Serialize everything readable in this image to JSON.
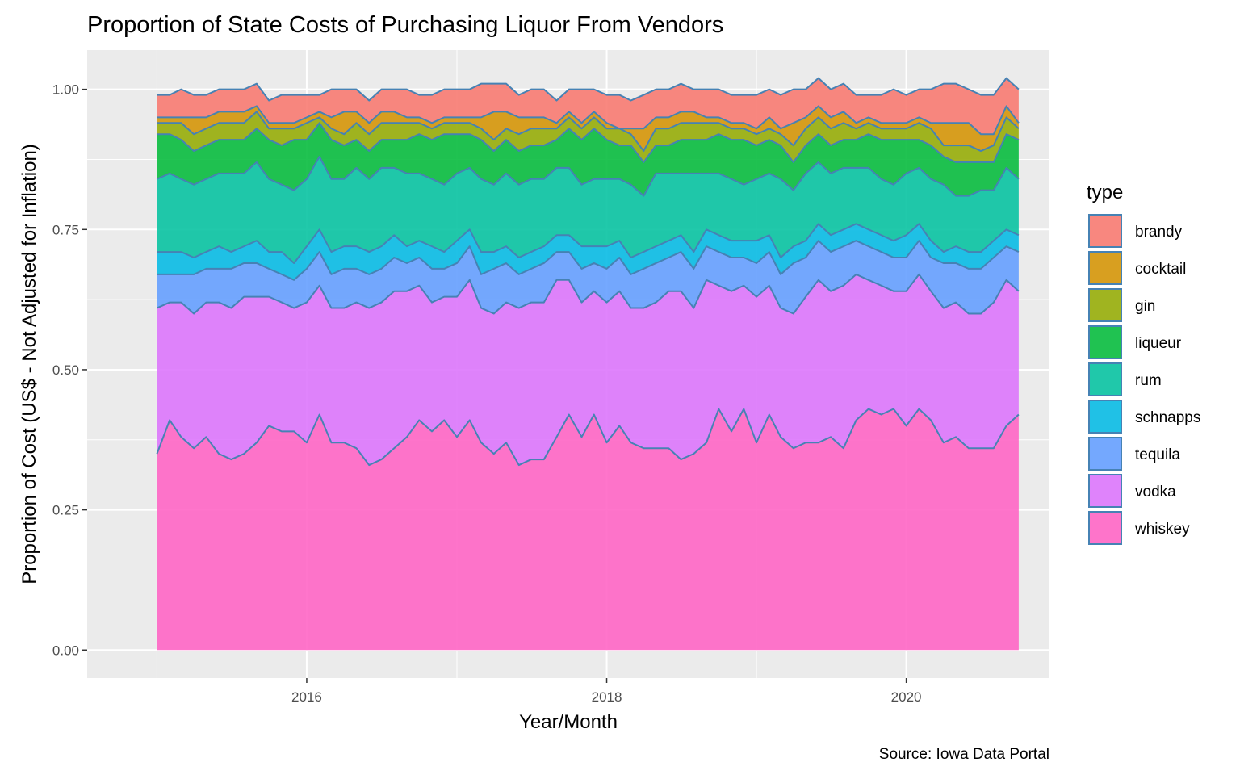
{
  "chart_data": {
    "type": "area",
    "title": "Proportion of State Costs of Purchasing Liquor From Vendors",
    "xlabel": "Year/Month",
    "ylabel": "Proportion of Cost (US$ - Not Adjusted for Inflation)",
    "caption": "Source: Iowa Data Portal",
    "legend_title": "type",
    "legend_position": "right",
    "grid": true,
    "stacked": true,
    "xlim": [
      "2014-07-15",
      "2020-12-15"
    ],
    "ylim": [
      -0.05,
      1.07
    ],
    "x_ticks": [
      "2016-01",
      "2018-01",
      "2020-01"
    ],
    "x_tick_labels": [
      "2016",
      "2018",
      "2020"
    ],
    "y_ticks": [
      0,
      0.25,
      0.5,
      0.75,
      1.0
    ],
    "y_tick_labels": [
      "0.00",
      "0.25",
      "0.50",
      "0.75",
      "1.00"
    ],
    "colors": {
      "brandy": "#F8766D",
      "cocktail": "#D39200",
      "gin": "#93AA00",
      "liqueur": "#00BA38",
      "rum": "#00C19F",
      "schnapps": "#00B9E3",
      "tequila": "#619CFF",
      "vodka": "#DB72FB",
      "whiskey": "#FF61C3"
    },
    "outline_color": "#4682B4",
    "x": [
      "2015-01",
      "2015-02",
      "2015-03",
      "2015-04",
      "2015-05",
      "2015-06",
      "2015-07",
      "2015-08",
      "2015-09",
      "2015-10",
      "2015-11",
      "2015-12",
      "2016-01",
      "2016-02",
      "2016-03",
      "2016-04",
      "2016-05",
      "2016-06",
      "2016-07",
      "2016-08",
      "2016-09",
      "2016-10",
      "2016-11",
      "2016-12",
      "2017-01",
      "2017-02",
      "2017-03",
      "2017-04",
      "2017-05",
      "2017-06",
      "2017-07",
      "2017-08",
      "2017-09",
      "2017-10",
      "2017-11",
      "2017-12",
      "2018-01",
      "2018-02",
      "2018-03",
      "2018-04",
      "2018-05",
      "2018-06",
      "2018-07",
      "2018-08",
      "2018-09",
      "2018-10",
      "2018-11",
      "2018-12",
      "2019-01",
      "2019-02",
      "2019-03",
      "2019-04",
      "2019-05",
      "2019-06",
      "2019-07",
      "2019-08",
      "2019-09",
      "2019-10",
      "2019-11",
      "2019-12",
      "2020-01",
      "2020-02",
      "2020-03",
      "2020-04",
      "2020-05",
      "2020-06",
      "2020-07",
      "2020-08",
      "2020-09",
      "2020-10"
    ],
    "stack_order": [
      "whiskey",
      "vodka",
      "tequila",
      "schnapps",
      "rum",
      "liqueur",
      "gin",
      "cocktail",
      "brandy"
    ],
    "series": [
      {
        "name": "whiskey",
        "cumulative": [
          0.35,
          0.41,
          0.38,
          0.36,
          0.38,
          0.35,
          0.34,
          0.35,
          0.37,
          0.4,
          0.39,
          0.39,
          0.37,
          0.42,
          0.37,
          0.37,
          0.36,
          0.33,
          0.34,
          0.36,
          0.38,
          0.41,
          0.39,
          0.41,
          0.38,
          0.41,
          0.37,
          0.35,
          0.37,
          0.33,
          0.34,
          0.34,
          0.38,
          0.42,
          0.38,
          0.42,
          0.37,
          0.4,
          0.37,
          0.36,
          0.36,
          0.36,
          0.34,
          0.35,
          0.37,
          0.43,
          0.39,
          0.43,
          0.37,
          0.42,
          0.38,
          0.36,
          0.37,
          0.37,
          0.38,
          0.36,
          0.41,
          0.43,
          0.42,
          0.43,
          0.4,
          0.43,
          0.41,
          0.37,
          0.38,
          0.36,
          0.36,
          0.36,
          0.4,
          0.42
        ]
      },
      {
        "name": "vodka",
        "cumulative": [
          0.61,
          0.62,
          0.62,
          0.6,
          0.62,
          0.62,
          0.61,
          0.63,
          0.63,
          0.63,
          0.62,
          0.61,
          0.62,
          0.65,
          0.61,
          0.61,
          0.62,
          0.61,
          0.62,
          0.64,
          0.64,
          0.65,
          0.62,
          0.63,
          0.63,
          0.66,
          0.61,
          0.6,
          0.62,
          0.61,
          0.62,
          0.62,
          0.66,
          0.66,
          0.62,
          0.64,
          0.62,
          0.64,
          0.61,
          0.61,
          0.62,
          0.64,
          0.64,
          0.61,
          0.66,
          0.65,
          0.64,
          0.65,
          0.63,
          0.65,
          0.61,
          0.6,
          0.63,
          0.66,
          0.64,
          0.65,
          0.67,
          0.66,
          0.65,
          0.64,
          0.64,
          0.67,
          0.64,
          0.61,
          0.62,
          0.6,
          0.6,
          0.62,
          0.66,
          0.64
        ]
      },
      {
        "name": "tequila",
        "cumulative": [
          0.67,
          0.67,
          0.67,
          0.67,
          0.68,
          0.68,
          0.68,
          0.69,
          0.69,
          0.68,
          0.67,
          0.66,
          0.68,
          0.71,
          0.67,
          0.68,
          0.68,
          0.67,
          0.68,
          0.7,
          0.69,
          0.7,
          0.68,
          0.68,
          0.69,
          0.72,
          0.67,
          0.68,
          0.69,
          0.67,
          0.68,
          0.69,
          0.71,
          0.71,
          0.68,
          0.69,
          0.68,
          0.7,
          0.67,
          0.68,
          0.69,
          0.7,
          0.71,
          0.68,
          0.72,
          0.71,
          0.7,
          0.7,
          0.69,
          0.71,
          0.67,
          0.69,
          0.7,
          0.73,
          0.71,
          0.72,
          0.73,
          0.72,
          0.71,
          0.7,
          0.7,
          0.73,
          0.7,
          0.69,
          0.69,
          0.68,
          0.68,
          0.7,
          0.72,
          0.71
        ]
      },
      {
        "name": "schnapps",
        "cumulative": [
          0.71,
          0.71,
          0.71,
          0.7,
          0.71,
          0.72,
          0.71,
          0.72,
          0.73,
          0.71,
          0.71,
          0.69,
          0.72,
          0.75,
          0.71,
          0.72,
          0.72,
          0.71,
          0.72,
          0.74,
          0.72,
          0.73,
          0.72,
          0.71,
          0.73,
          0.75,
          0.71,
          0.71,
          0.72,
          0.7,
          0.71,
          0.72,
          0.74,
          0.74,
          0.72,
          0.72,
          0.72,
          0.73,
          0.7,
          0.71,
          0.72,
          0.73,
          0.74,
          0.71,
          0.75,
          0.74,
          0.73,
          0.73,
          0.73,
          0.74,
          0.7,
          0.72,
          0.73,
          0.76,
          0.74,
          0.75,
          0.76,
          0.75,
          0.74,
          0.73,
          0.74,
          0.76,
          0.73,
          0.71,
          0.72,
          0.71,
          0.71,
          0.73,
          0.75,
          0.74
        ]
      },
      {
        "name": "rum",
        "cumulative": [
          0.84,
          0.85,
          0.84,
          0.83,
          0.84,
          0.85,
          0.85,
          0.85,
          0.87,
          0.84,
          0.83,
          0.82,
          0.84,
          0.88,
          0.84,
          0.84,
          0.86,
          0.84,
          0.86,
          0.86,
          0.85,
          0.85,
          0.84,
          0.83,
          0.85,
          0.86,
          0.84,
          0.83,
          0.85,
          0.83,
          0.84,
          0.84,
          0.86,
          0.86,
          0.83,
          0.84,
          0.84,
          0.84,
          0.83,
          0.81,
          0.85,
          0.85,
          0.85,
          0.85,
          0.85,
          0.85,
          0.84,
          0.83,
          0.84,
          0.85,
          0.84,
          0.82,
          0.85,
          0.87,
          0.85,
          0.86,
          0.86,
          0.86,
          0.84,
          0.83,
          0.85,
          0.86,
          0.84,
          0.83,
          0.81,
          0.81,
          0.82,
          0.82,
          0.86,
          0.84
        ]
      },
      {
        "name": "liqueur",
        "cumulative": [
          0.92,
          0.92,
          0.91,
          0.89,
          0.9,
          0.91,
          0.91,
          0.91,
          0.93,
          0.91,
          0.9,
          0.91,
          0.91,
          0.94,
          0.91,
          0.9,
          0.91,
          0.89,
          0.91,
          0.91,
          0.91,
          0.92,
          0.91,
          0.92,
          0.92,
          0.92,
          0.91,
          0.89,
          0.91,
          0.89,
          0.9,
          0.9,
          0.91,
          0.93,
          0.91,
          0.93,
          0.91,
          0.9,
          0.9,
          0.87,
          0.9,
          0.9,
          0.91,
          0.91,
          0.91,
          0.92,
          0.91,
          0.91,
          0.9,
          0.91,
          0.9,
          0.87,
          0.9,
          0.92,
          0.9,
          0.91,
          0.91,
          0.92,
          0.91,
          0.91,
          0.91,
          0.91,
          0.9,
          0.88,
          0.87,
          0.87,
          0.87,
          0.87,
          0.92,
          0.91
        ]
      },
      {
        "name": "gin",
        "cumulative": [
          0.94,
          0.94,
          0.94,
          0.92,
          0.93,
          0.94,
          0.94,
          0.94,
          0.96,
          0.93,
          0.93,
          0.93,
          0.94,
          0.95,
          0.93,
          0.92,
          0.94,
          0.92,
          0.94,
          0.94,
          0.94,
          0.94,
          0.93,
          0.94,
          0.94,
          0.94,
          0.93,
          0.91,
          0.93,
          0.92,
          0.93,
          0.93,
          0.93,
          0.95,
          0.93,
          0.95,
          0.93,
          0.93,
          0.92,
          0.89,
          0.93,
          0.93,
          0.94,
          0.94,
          0.94,
          0.94,
          0.93,
          0.93,
          0.92,
          0.93,
          0.92,
          0.9,
          0.93,
          0.95,
          0.93,
          0.94,
          0.93,
          0.94,
          0.93,
          0.93,
          0.93,
          0.94,
          0.93,
          0.9,
          0.9,
          0.9,
          0.89,
          0.9,
          0.95,
          0.93
        ]
      },
      {
        "name": "cocktail",
        "cumulative": [
          0.95,
          0.95,
          0.95,
          0.95,
          0.95,
          0.96,
          0.96,
          0.96,
          0.97,
          0.94,
          0.94,
          0.94,
          0.95,
          0.96,
          0.95,
          0.96,
          0.96,
          0.94,
          0.96,
          0.96,
          0.95,
          0.95,
          0.94,
          0.95,
          0.95,
          0.95,
          0.95,
          0.96,
          0.96,
          0.95,
          0.95,
          0.95,
          0.94,
          0.96,
          0.94,
          0.96,
          0.94,
          0.93,
          0.93,
          0.93,
          0.95,
          0.95,
          0.96,
          0.96,
          0.95,
          0.95,
          0.94,
          0.94,
          0.93,
          0.95,
          0.93,
          0.94,
          0.95,
          0.97,
          0.95,
          0.96,
          0.94,
          0.95,
          0.94,
          0.94,
          0.94,
          0.95,
          0.94,
          0.94,
          0.94,
          0.94,
          0.92,
          0.92,
          0.97,
          0.94
        ]
      },
      {
        "name": "brandy",
        "cumulative": [
          0.99,
          0.99,
          1.0,
          0.99,
          0.99,
          1.0,
          1.0,
          1.0,
          1.01,
          0.98,
          0.99,
          0.99,
          0.99,
          0.99,
          1.0,
          1.0,
          1.0,
          0.98,
          1.0,
          1.0,
          1.0,
          0.99,
          0.99,
          1.0,
          1.0,
          1.0,
          1.01,
          1.01,
          1.01,
          0.99,
          1.0,
          1.0,
          0.98,
          1.0,
          1.0,
          1.0,
          0.99,
          0.99,
          0.98,
          0.99,
          1.0,
          1.0,
          1.01,
          1.0,
          1.0,
          1.0,
          0.99,
          0.99,
          0.99,
          1.0,
          0.99,
          1.0,
          1.0,
          1.02,
          1.0,
          1.01,
          0.99,
          0.99,
          0.99,
          1.0,
          0.99,
          1.0,
          1.0,
          1.01,
          1.01,
          1.0,
          0.99,
          0.99,
          1.02,
          1.0
        ]
      }
    ]
  }
}
